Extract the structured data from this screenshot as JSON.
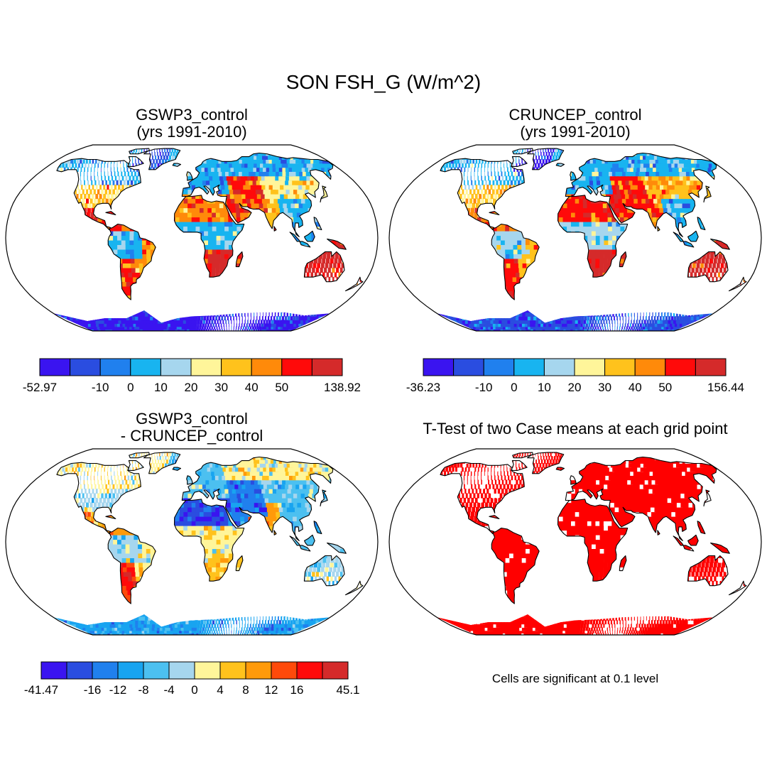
{
  "figure": {
    "title": "SON FSH_G (W/m^2)",
    "footnote": "Cells are significant at 0.1 level"
  },
  "colors": {
    "land_outline": "#000000",
    "map_border": "#000000",
    "ttest_fill": "#ff0000",
    "ocean": "#ffffff"
  },
  "chart_data": [
    {
      "type": "heatmap",
      "projection": "robinson",
      "title_line1": "GSWP3_control",
      "title_line2": "(yrs 1991-2010)",
      "colorbar": {
        "colors": [
          "#3a14f0",
          "#2a4de0",
          "#2080ee",
          "#18b4f0",
          "#a6d6ee",
          "#fff59a",
          "#ffc21c",
          "#ff8a0a",
          "#ff0a0a",
          "#d52a2a"
        ],
        "labels": [
          "-52.97",
          "-10",
          "0",
          "10",
          "20",
          "30",
          "40",
          "50",
          "138.92"
        ],
        "label_at_boundary": [
          0,
          2,
          3,
          4,
          5,
          6,
          7,
          8,
          10
        ]
      },
      "regions": {
        "antarctica": 0,
        "greenland": 1,
        "north_america_north": 3,
        "north_america_south": 6,
        "mexico": 8,
        "amazon": 3,
        "south_america_east": 7,
        "patagonia": 8,
        "europe": 3,
        "sahara": 7,
        "middle_east": 8,
        "central_africa": 3,
        "southern_africa": 9,
        "siberia": 3,
        "central_asia": 5,
        "india": 6,
        "southeast_asia": 3,
        "australia": 9
      }
    },
    {
      "type": "heatmap",
      "projection": "robinson",
      "title_line1": "CRUNCEP_control",
      "title_line2": "(yrs 1991-2010)",
      "colorbar": {
        "colors": [
          "#3a14f0",
          "#2a4de0",
          "#2080ee",
          "#18b4f0",
          "#a6d6ee",
          "#fff59a",
          "#ffc21c",
          "#ff8a0a",
          "#ff0a0a",
          "#d52a2a"
        ],
        "labels": [
          "-36.23",
          "-10",
          "0",
          "10",
          "20",
          "30",
          "40",
          "50",
          "156.44"
        ],
        "label_at_boundary": [
          0,
          2,
          3,
          4,
          5,
          6,
          7,
          8,
          10
        ]
      },
      "regions": {
        "antarctica": 1,
        "greenland": 0,
        "north_america_north": 3,
        "north_america_south": 6,
        "mexico": 7,
        "amazon": 4,
        "south_america_east": 6,
        "patagonia": 8,
        "europe": 3,
        "sahara": 8,
        "middle_east": 8,
        "central_africa": 4,
        "southern_africa": 9,
        "siberia": 3,
        "central_asia": 6,
        "india": 7,
        "southeast_asia": 3,
        "australia": 9
      }
    },
    {
      "type": "heatmap",
      "projection": "robinson",
      "title_line1": "GSWP3_control",
      "title_line2": "- CRUNCEP_control",
      "colorbar": {
        "colors": [
          "#3a14f0",
          "#2a4de0",
          "#2080ee",
          "#18a4f0",
          "#4cc0f0",
          "#a6d6ee",
          "#fff59a",
          "#ffc21c",
          "#ff9a0a",
          "#ff4a0a",
          "#ff0a0a",
          "#d52a2a"
        ],
        "labels": [
          "-41.47",
          "-16",
          "-12",
          "-8",
          "-4",
          "0",
          "4",
          "8",
          "12",
          "16",
          "45.1"
        ],
        "label_at_boundary": [
          0,
          2,
          3,
          4,
          5,
          6,
          7,
          8,
          9,
          10,
          12
        ]
      },
      "regions": {
        "antarctica": 3,
        "greenland": 6,
        "north_america_north": 6,
        "north_america_south": 5,
        "mexico": 8,
        "amazon": 5,
        "south_america_east": 6,
        "patagonia": 10,
        "europe": 4,
        "sahara": 1,
        "middle_east": 2,
        "central_africa": 6,
        "southern_africa": 7,
        "siberia": 6,
        "central_asia": 4,
        "india": 8,
        "southeast_asia": 4,
        "australia": 5
      }
    },
    {
      "type": "heatmap",
      "projection": "robinson",
      "title_line1": "T-Test of two Case means at each grid point",
      "significance_level": 0.1,
      "significant_fraction": 0.92
    }
  ]
}
